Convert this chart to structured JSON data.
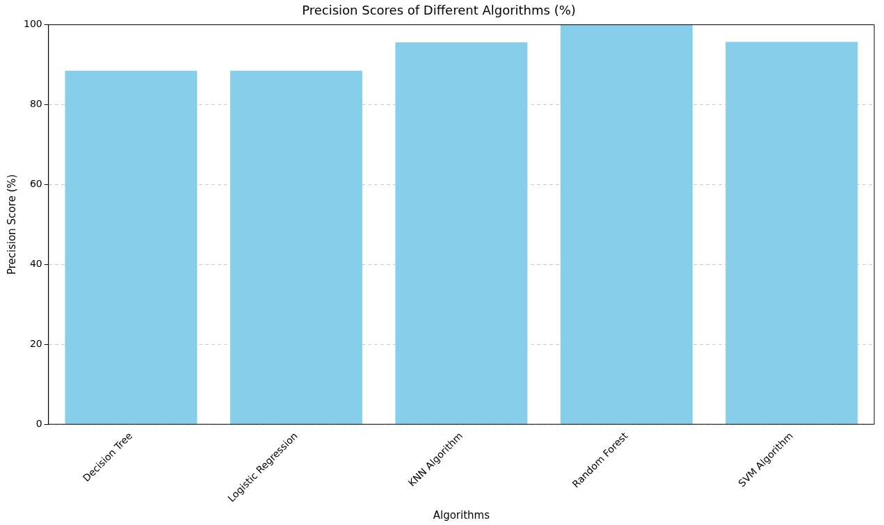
{
  "chart_data": {
    "type": "bar",
    "title": "Precision Scores of Different Algorithms (%)",
    "xlabel": "Algorithms",
    "ylabel": "Precision Score (%)",
    "categories": [
      "Decision Tree",
      "Logistic Regression",
      "KNN Algorithm",
      "Random Forest",
      "SVM Algorithm"
    ],
    "values": [
      88.5,
      88.5,
      95.6,
      100,
      95.7
    ],
    "color": "#87ceeb",
    "ylim": [
      0,
      100
    ],
    "yticks": [
      0,
      20,
      40,
      60,
      80,
      100
    ],
    "grid": "y"
  }
}
